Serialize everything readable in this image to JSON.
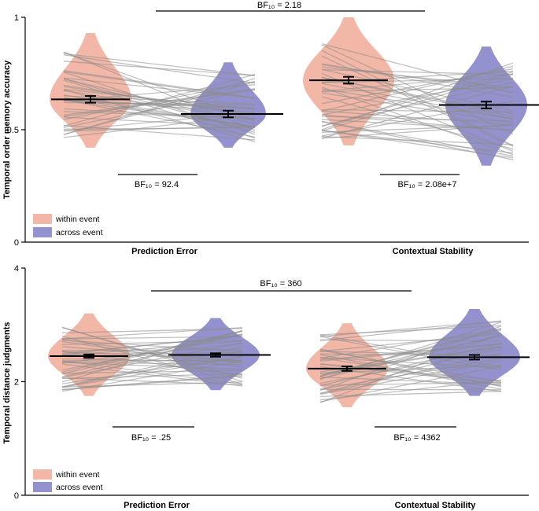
{
  "chart_data": [
    {
      "type": "violin",
      "ylabel": "Temporal order memory accuracy",
      "ylim": [
        0,
        1
      ],
      "yticks": [
        {
          "value": 0,
          "label": "0"
        },
        {
          "value": 0.5,
          "label": "0.5"
        },
        {
          "value": 1,
          "label": "1"
        }
      ],
      "categories": [
        "Prediction Error",
        "Contextual Stability"
      ],
      "legend": {
        "position": "bottom-left",
        "entries": [
          "within event",
          "across event"
        ]
      },
      "colors": {
        "within": "#f2b7a6",
        "across": "#9392cf",
        "within_dark": "#d9836c",
        "across_dark": "#5e5cab",
        "lines": "#8c8c8c"
      },
      "series": [
        {
          "name": "within event",
          "category": "Prediction Error",
          "mean": 0.635,
          "sem": 0.015,
          "range": [
            0.42,
            0.93
          ]
        },
        {
          "name": "across event",
          "category": "Prediction Error",
          "mean": 0.57,
          "sem": 0.015,
          "range": [
            0.42,
            0.8
          ]
        },
        {
          "name": "within event",
          "category": "Contextual Stability",
          "mean": 0.72,
          "sem": 0.015,
          "range": [
            0.43,
            1.0
          ]
        },
        {
          "name": "across event",
          "category": "Contextual Stability",
          "mean": 0.61,
          "sem": 0.015,
          "range": [
            0.34,
            0.87
          ]
        }
      ],
      "annotations": [
        {
          "text": "BF₁₀ = 92.4",
          "between": "within-across",
          "category": "Prediction Error"
        },
        {
          "text": "BF₁₀ = 2.08e+7",
          "between": "within-across",
          "category": "Contextual Stability"
        },
        {
          "text": "BF₁₀ = 2.18",
          "between": "Prediction Error-Contextual Stability"
        }
      ]
    },
    {
      "type": "violin",
      "ylabel": "Temporal distance judgments",
      "ylim": [
        0,
        4
      ],
      "yticks": [
        {
          "value": 0,
          "label": "0"
        },
        {
          "value": 2,
          "label": "2"
        },
        {
          "value": 4,
          "label": "4"
        }
      ],
      "categories": [
        "Prediction Error",
        "Contextual Stability"
      ],
      "legend": {
        "position": "bottom-left",
        "entries": [
          "within event",
          "across event"
        ]
      },
      "colors": {
        "within": "#f2b7a6",
        "across": "#9392cf",
        "within_dark": "#d9836c",
        "across_dark": "#5e5cab",
        "lines": "#8c8c8c"
      },
      "series": [
        {
          "name": "within event",
          "category": "Prediction Error",
          "mean": 2.45,
          "sem": 0.03,
          "range": [
            1.75,
            3.2
          ]
        },
        {
          "name": "across event",
          "category": "Prediction Error",
          "mean": 2.47,
          "sem": 0.03,
          "range": [
            1.85,
            3.12
          ]
        },
        {
          "name": "within event",
          "category": "Contextual Stability",
          "mean": 2.23,
          "sem": 0.04,
          "range": [
            1.55,
            3.03
          ]
        },
        {
          "name": "across event",
          "category": "Contextual Stability",
          "mean": 2.43,
          "sem": 0.04,
          "range": [
            1.75,
            3.28
          ]
        }
      ],
      "annotations": [
        {
          "text": "BF₁₀ = .25",
          "between": "within-across",
          "category": "Prediction Error"
        },
        {
          "text": "BF₁₀ = 4362",
          "between": "within-across",
          "category": "Contextual Stability"
        },
        {
          "text": "BF₁₀ = 360",
          "between": "Prediction Error-Contextual Stability"
        }
      ]
    }
  ]
}
